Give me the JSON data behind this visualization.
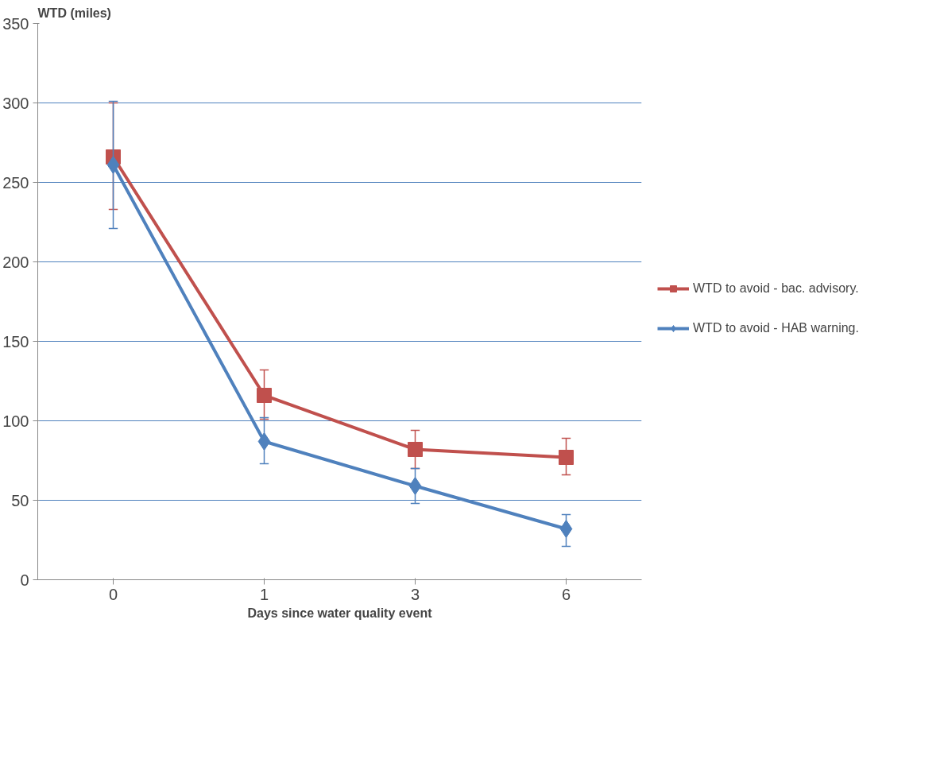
{
  "chart_data": {
    "type": "line",
    "xlabel": "Days since water quality event",
    "ylabel": "WTD (miles)",
    "categories": [
      "0",
      "1",
      "3",
      "6"
    ],
    "series": [
      {
        "name": "WTD to avoid - bac. advisory.",
        "color": "#c0504d",
        "marker": "square",
        "values": [
          266,
          116,
          82,
          77
        ],
        "errors": [
          [
            233,
            300
          ],
          [
            101,
            132
          ],
          [
            70,
            94
          ],
          [
            66,
            89
          ]
        ]
      },
      {
        "name": "WTD to avoid - HAB warning.",
        "color": "#4f81bd",
        "marker": "diamond",
        "values": [
          261,
          87,
          59,
          32
        ],
        "errors": [
          [
            221,
            301
          ],
          [
            73,
            102
          ],
          [
            48,
            70
          ],
          [
            21,
            41
          ]
        ]
      }
    ],
    "ylim": [
      0,
      350
    ],
    "yticks": [
      0,
      50,
      100,
      150,
      200,
      250,
      300,
      350
    ],
    "grid": "y",
    "legend": "right",
    "line_style": "solid"
  }
}
